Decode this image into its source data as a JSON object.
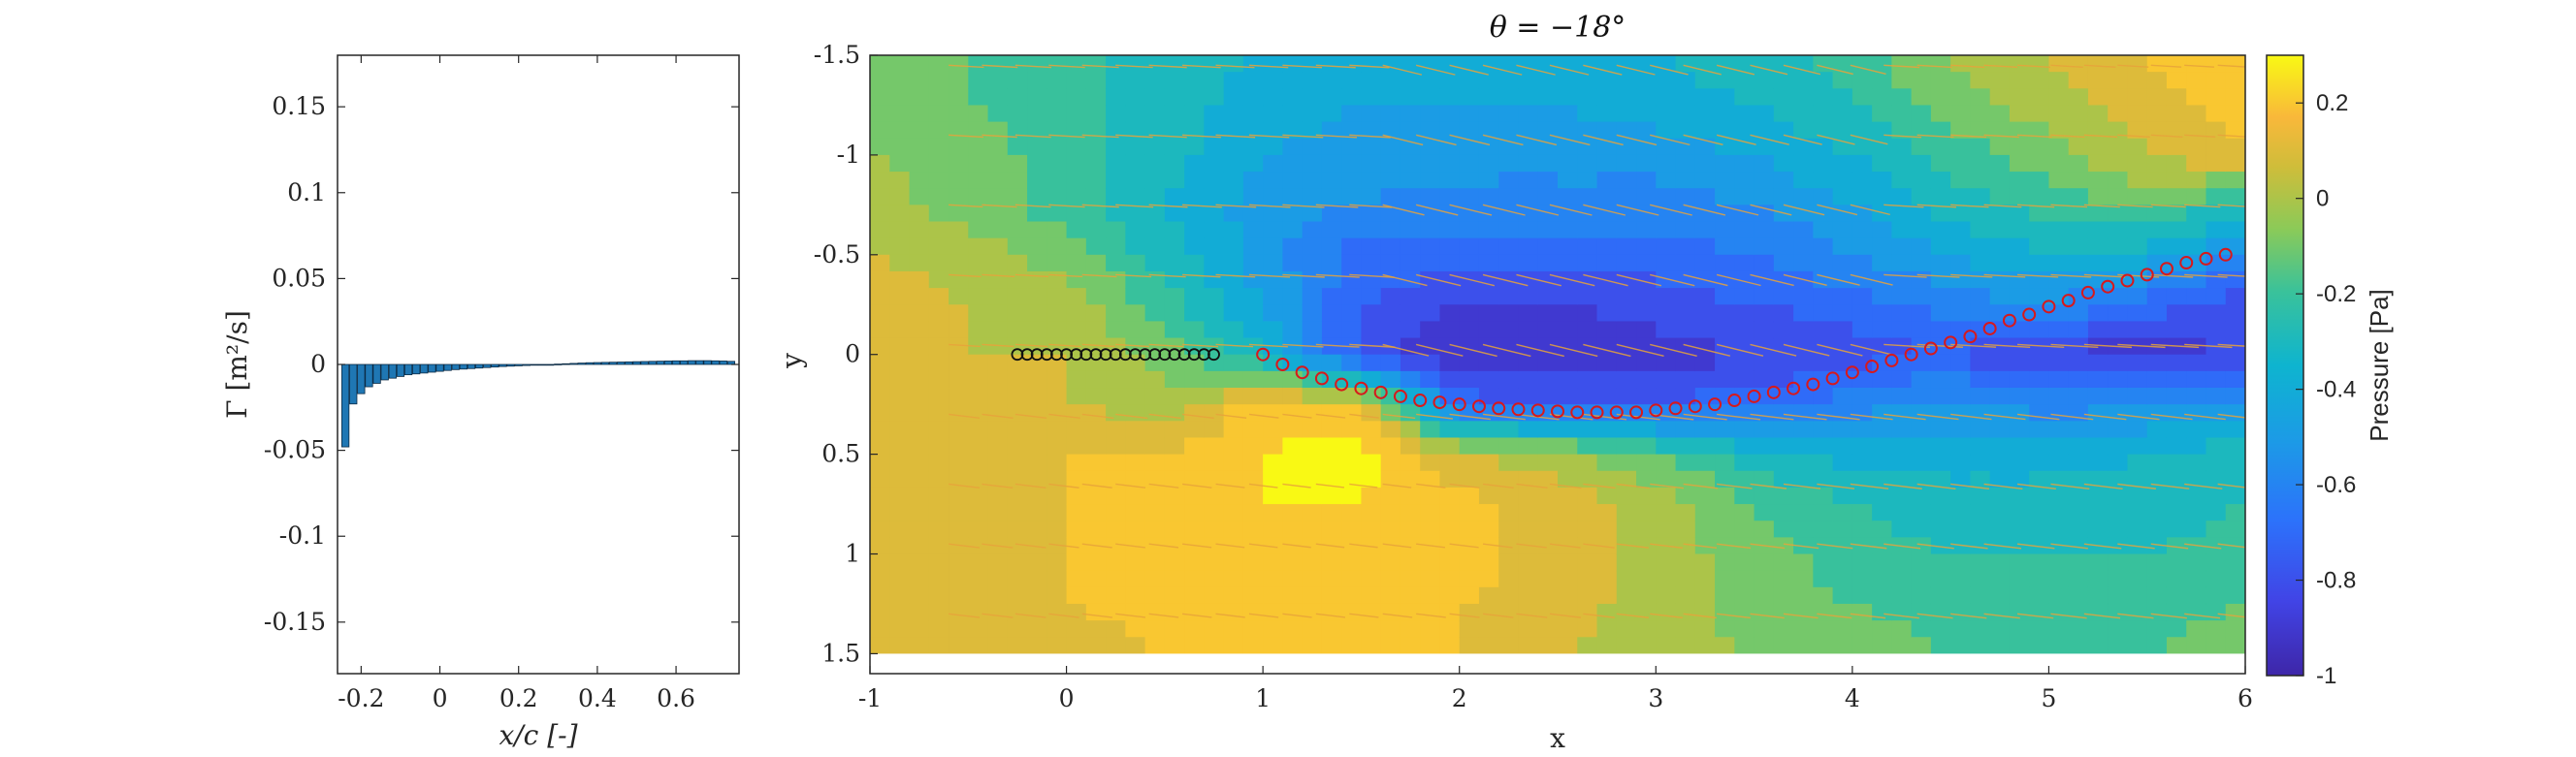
{
  "chart_data": [
    {
      "type": "bar",
      "title": "",
      "xlabel": "x/c [-]",
      "ylabel": "Γ [m²/s]",
      "xlim": [
        -0.26,
        0.76
      ],
      "ylim": [
        -0.18,
        0.18
      ],
      "xticks": [
        -0.2,
        0,
        0.2,
        0.4,
        0.6
      ],
      "xtick_labels": [
        "-0.2",
        "0",
        "0.2",
        "0.4",
        "0.6"
      ],
      "yticks": [
        0.15,
        0.1,
        0.05,
        0,
        -0.05,
        -0.1,
        -0.15
      ],
      "ytick_labels": [
        "0.15",
        "0.1",
        "0.05",
        "0",
        "-0.05",
        "-0.1",
        "-0.15"
      ],
      "bar_color": "#1f77b4",
      "x": [
        -0.24,
        -0.22,
        -0.2,
        -0.18,
        -0.16,
        -0.14,
        -0.12,
        -0.1,
        -0.08,
        -0.06,
        -0.04,
        -0.02,
        0.0,
        0.02,
        0.04,
        0.06,
        0.08,
        0.1,
        0.12,
        0.14,
        0.16,
        0.18,
        0.2,
        0.22,
        0.24,
        0.26,
        0.28,
        0.3,
        0.32,
        0.34,
        0.36,
        0.38,
        0.4,
        0.42,
        0.44,
        0.46,
        0.48,
        0.5,
        0.52,
        0.54,
        0.56,
        0.58,
        0.6,
        0.62,
        0.64,
        0.66,
        0.68,
        0.7,
        0.72,
        0.74
      ],
      "values": [
        -0.048,
        -0.023,
        -0.017,
        -0.013,
        -0.011,
        -0.009,
        -0.008,
        -0.007,
        -0.006,
        -0.0055,
        -0.005,
        -0.0045,
        -0.004,
        -0.0035,
        -0.003,
        -0.0027,
        -0.0024,
        -0.0021,
        -0.0018,
        -0.0015,
        -0.0012,
        -0.001,
        -0.0008,
        -0.0006,
        -0.0004,
        -0.0002,
        0.0,
        0.0002,
        0.0004,
        0.0006,
        0.0008,
        0.001,
        0.0011,
        0.0012,
        0.0013,
        0.0014,
        0.0015,
        0.0016,
        0.0017,
        0.0018,
        0.0019,
        0.002,
        0.0021,
        0.0021,
        0.0022,
        0.0022,
        0.0022,
        0.0021,
        0.002,
        0.0018
      ]
    },
    {
      "type": "heatmap",
      "title": "θ = −18°",
      "xlabel": "x",
      "ylabel": "y",
      "xlim": [
        -1,
        6
      ],
      "ylim": [
        -1.5,
        1.6
      ],
      "y_reversed": true,
      "xticks": [
        -1,
        0,
        1,
        2,
        3,
        4,
        5,
        6
      ],
      "xtick_labels": [
        "-1",
        "0",
        "1",
        "2",
        "3",
        "4",
        "5",
        "6"
      ],
      "yticks": [
        -1.5,
        -1,
        -0.5,
        0,
        0.5,
        1,
        1.5
      ],
      "ytick_labels": [
        "-1.5",
        "-1",
        "-0.5",
        "0",
        "0.5",
        "1",
        "1.5"
      ],
      "colorbar": {
        "label": "Pressure [Pa]",
        "range": [
          -1,
          0.3
        ],
        "ticks": [
          0.2,
          0,
          -0.2,
          -0.4,
          -0.6,
          -0.8,
          -1
        ],
        "tick_labels": [
          "0.2",
          "0",
          "-0.2",
          "-0.4",
          "-0.6",
          "-0.8",
          "-1"
        ],
        "colormap": "parula"
      },
      "pressure_field": {
        "x": [
          -1,
          -0.5,
          0,
          0.5,
          1,
          1.5,
          2,
          2.5,
          3,
          3.5,
          4,
          4.5,
          5,
          5.5,
          6
        ],
        "y": [
          -1.5,
          -1.25,
          -1,
          -0.75,
          -0.5,
          -0.25,
          0,
          0.25,
          0.5,
          0.75,
          1,
          1.25,
          1.5
        ],
        "values": [
          [
            -0.1,
            -0.15,
            -0.2,
            -0.3,
            -0.35,
            -0.4,
            -0.4,
            -0.4,
            -0.35,
            -0.3,
            -0.2,
            -0.05,
            0.05,
            0.15,
            0.25
          ],
          [
            -0.1,
            -0.15,
            -0.2,
            -0.3,
            -0.4,
            -0.45,
            -0.45,
            -0.45,
            -0.4,
            -0.35,
            -0.25,
            -0.1,
            0.0,
            0.1,
            0.2
          ],
          [
            -0.05,
            -0.1,
            -0.2,
            -0.3,
            -0.45,
            -0.5,
            -0.5,
            -0.5,
            -0.5,
            -0.45,
            -0.35,
            -0.2,
            -0.1,
            0.05,
            0.15
          ],
          [
            0.0,
            -0.1,
            -0.2,
            -0.35,
            -0.5,
            -0.55,
            -0.6,
            -0.6,
            -0.6,
            -0.55,
            -0.45,
            -0.3,
            -0.2,
            -0.1,
            -0.3
          ],
          [
            0.05,
            0.0,
            -0.1,
            -0.3,
            -0.5,
            -0.7,
            -0.7,
            -0.7,
            -0.7,
            -0.65,
            -0.55,
            -0.45,
            -0.35,
            -0.4,
            -0.6
          ],
          [
            0.1,
            0.05,
            0.0,
            -0.2,
            -0.45,
            -0.75,
            -0.85,
            -0.85,
            -0.8,
            -0.75,
            -0.7,
            -0.6,
            -0.55,
            -0.7,
            -0.8
          ],
          [
            0.1,
            0.05,
            0.05,
            -0.1,
            -0.35,
            -0.8,
            -0.95,
            -0.95,
            -0.9,
            -0.85,
            -0.8,
            -0.75,
            -0.9,
            -0.9,
            -0.85
          ],
          [
            0.1,
            0.1,
            0.05,
            0.0,
            0.2,
            0.15,
            -0.7,
            -0.75,
            -0.75,
            -0.7,
            -0.6,
            -0.5,
            -0.6,
            -0.55,
            -0.5
          ],
          [
            0.1,
            0.1,
            0.15,
            0.15,
            0.25,
            0.3,
            0.05,
            0.0,
            -0.15,
            -0.3,
            -0.4,
            -0.4,
            -0.4,
            -0.35,
            -0.3
          ],
          [
            0.1,
            0.1,
            0.15,
            0.2,
            0.25,
            0.25,
            0.2,
            0.1,
            0.0,
            -0.15,
            -0.25,
            -0.3,
            -0.3,
            -0.3,
            -0.25
          ],
          [
            0.1,
            0.1,
            0.15,
            0.2,
            0.25,
            0.25,
            0.2,
            0.1,
            0.0,
            -0.1,
            -0.2,
            -0.25,
            -0.25,
            -0.25,
            -0.2
          ],
          [
            0.1,
            0.1,
            0.15,
            0.2,
            0.2,
            0.2,
            0.15,
            0.1,
            0.0,
            -0.1,
            -0.15,
            -0.2,
            -0.2,
            -0.2,
            -0.15
          ],
          [
            0.1,
            0.1,
            0.1,
            0.15,
            0.2,
            0.2,
            0.15,
            0.05,
            0.0,
            -0.05,
            -0.1,
            -0.15,
            -0.15,
            -0.15,
            -0.1
          ]
        ]
      },
      "body_points": {
        "marker": "black circles",
        "x": [
          -0.25,
          -0.2,
          -0.15,
          -0.1,
          -0.05,
          0.0,
          0.05,
          0.1,
          0.15,
          0.2,
          0.25,
          0.3,
          0.35,
          0.4,
          0.45,
          0.5,
          0.55,
          0.6,
          0.65,
          0.7,
          0.75
        ],
        "y": [
          0,
          0,
          0,
          0,
          0,
          0,
          0,
          0,
          0,
          0,
          0,
          0,
          0,
          0,
          0,
          0,
          0,
          0,
          0,
          0,
          0
        ]
      },
      "wake_points": {
        "marker": "red circles",
        "color": "#d7191c",
        "x": [
          1.0,
          1.1,
          1.2,
          1.3,
          1.4,
          1.5,
          1.6,
          1.7,
          1.8,
          1.9,
          2.0,
          2.1,
          2.2,
          2.3,
          2.4,
          2.5,
          2.6,
          2.7,
          2.8,
          2.9,
          3.0,
          3.1,
          3.2,
          3.3,
          3.4,
          3.5,
          3.6,
          3.7,
          3.8,
          3.9,
          4.0,
          4.1,
          4.2,
          4.3,
          4.4,
          4.5,
          4.6,
          4.7,
          4.8,
          4.9,
          5.0,
          5.1,
          5.2,
          5.3,
          5.4,
          5.5,
          5.6,
          5.7,
          5.8,
          5.9
        ],
        "y": [
          0.0,
          0.05,
          0.09,
          0.12,
          0.15,
          0.17,
          0.19,
          0.21,
          0.23,
          0.24,
          0.25,
          0.26,
          0.27,
          0.275,
          0.28,
          0.285,
          0.29,
          0.29,
          0.29,
          0.29,
          0.28,
          0.27,
          0.26,
          0.25,
          0.23,
          0.21,
          0.19,
          0.17,
          0.15,
          0.12,
          0.09,
          0.06,
          0.03,
          0.0,
          -0.03,
          -0.06,
          -0.09,
          -0.13,
          -0.17,
          -0.2,
          -0.24,
          -0.27,
          -0.31,
          -0.34,
          -0.37,
          -0.4,
          -0.43,
          -0.46,
          -0.48,
          -0.5
        ]
      },
      "quiver_color": "#e8a33a"
    }
  ]
}
